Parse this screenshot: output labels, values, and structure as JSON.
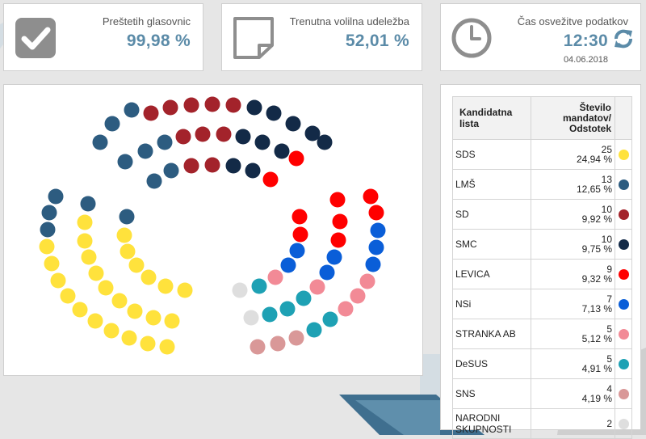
{
  "stats": {
    "counted": {
      "label": "Preštetih glasovnic",
      "value": "99,98 %"
    },
    "turnout": {
      "label": "Trenutna volilna udeležba",
      "value": "52,01 %"
    },
    "refresh": {
      "label": "Čas osvežitve podatkov",
      "time": "12:30",
      "date": "04.06.2018"
    }
  },
  "colors": {
    "accent": "#5b8ba8",
    "check_tile": "#8e8e8e",
    "SDS": "#ffe23c",
    "LMS": "#2d5c80",
    "SD": "#a3232b",
    "SMC": "#132a47",
    "LEVICA": "#ff0000",
    "NSi": "#0a5ed8",
    "STRANKA_AB": "#f28a96",
    "DeSUS": "#1ea1b4",
    "SNS": "#d99898",
    "NARODNI_SKUPNOSTI": "#dedede"
  },
  "table": {
    "headers": {
      "name": "Kandidatna lista",
      "seats": "Število mandatov/ Odstotek"
    },
    "rows": [
      {
        "name": "SDS",
        "seats": "25",
        "percent": "24,94 %",
        "color": "#ffe23c"
      },
      {
        "name": "LMŠ",
        "seats": "13",
        "percent": "12,65 %",
        "color": "#2d5c80"
      },
      {
        "name": "SD",
        "seats": "10",
        "percent": "9,92 %",
        "color": "#a3232b"
      },
      {
        "name": "SMC",
        "seats": "10",
        "percent": "9,75 %",
        "color": "#132a47"
      },
      {
        "name": "LEVICA",
        "seats": "9",
        "percent": "9,32 %",
        "color": "#ff0000"
      },
      {
        "name": "NSi",
        "seats": "7",
        "percent": "7,13 %",
        "color": "#0a5ed8"
      },
      {
        "name": "STRANKA AB",
        "seats": "5",
        "percent": "5,12 %",
        "color": "#f28a96"
      },
      {
        "name": "DeSUS",
        "seats": "5",
        "percent": "4,91 %",
        "color": "#1ea1b4"
      },
      {
        "name": "SNS",
        "seats": "4",
        "percent": "4,19 %",
        "color": "#d99898"
      },
      {
        "name": "NARODNI SKUPNOSTI",
        "seats": "2",
        "percent": "",
        "color": "#dedede"
      }
    ]
  },
  "icons": {
    "counted": "checkmark-icon",
    "turnout": "document-icon",
    "refresh": "clock-icon",
    "refresh_button": "refresh-icon"
  }
}
